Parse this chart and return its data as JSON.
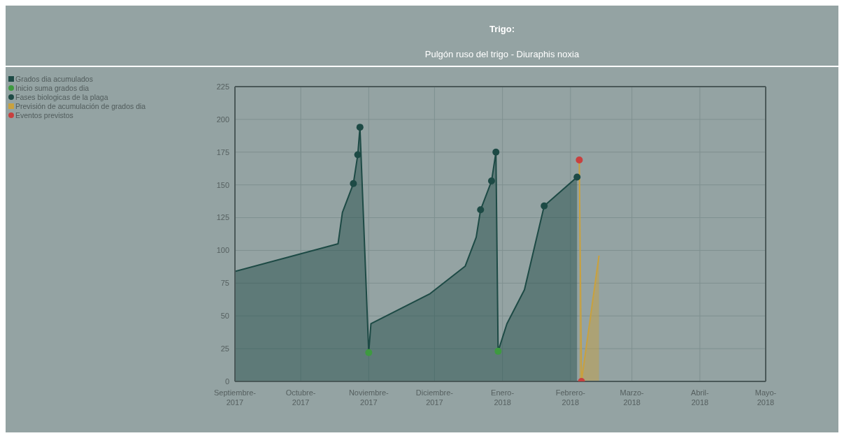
{
  "chart_data": {
    "type": "area",
    "title": "Trigo:",
    "subtitle": "Pulgón ruso del trigo - Diuraphis noxia",
    "xlim": [
      "2017-09-01",
      "2018-05-01"
    ],
    "xticks": [
      {
        "value": "2017-09-01",
        "label": "Septiembre-2017"
      },
      {
        "value": "2017-10-01",
        "label": "Octubre-2017"
      },
      {
        "value": "2017-11-01",
        "label": "Noviembre-2017"
      },
      {
        "value": "2017-12-01",
        "label": "Diciembre-2017"
      },
      {
        "value": "2018-01-01",
        "label": "Enero-2018"
      },
      {
        "value": "2018-02-01",
        "label": "Febrero-2018"
      },
      {
        "value": "2018-03-01",
        "label": "Marzo-2018"
      },
      {
        "value": "2018-04-01",
        "label": "Abril-2018"
      },
      {
        "value": "2018-05-01",
        "label": "Mayo-2018"
      }
    ],
    "ylim": [
      0,
      225
    ],
    "yticks": [
      0,
      25,
      50,
      75,
      100,
      125,
      150,
      175,
      200,
      225
    ],
    "grid": true,
    "legend": "top left",
    "series": [
      {
        "name": "Grados dia acumulados",
        "type": "area",
        "marker": "none",
        "color": "#1d4a45",
        "x": [
          "2017-09-01",
          "2017-10-18",
          "2017-10-20",
          "2017-10-25",
          "2017-10-27",
          "2017-10-28",
          "2017-11-01",
          "2017-11-02",
          "2017-11-29",
          "2017-12-15",
          "2017-12-20",
          "2017-12-22",
          "2017-12-27",
          "2017-12-29",
          "2017-12-30",
          "2018-01-03",
          "2018-01-11",
          "2018-01-20",
          "2018-02-04"
        ],
        "values": [
          84,
          105,
          129,
          151,
          173,
          194,
          22,
          44,
          67,
          88,
          110,
          131,
          153,
          175,
          23,
          44,
          70,
          134,
          156
        ]
      },
      {
        "name": "Inicio suma grados dia",
        "type": "scatter",
        "marker": "circle",
        "color": "#3e9a40",
        "x": [
          "2017-11-01",
          "2017-12-30"
        ],
        "values": [
          22,
          23
        ]
      },
      {
        "name": "Fases biologicas de la plaga",
        "type": "scatter",
        "marker": "circle",
        "color": "#1d4a45",
        "x": [
          "2017-10-25",
          "2017-10-27",
          "2017-10-28",
          "2017-12-22",
          "2017-12-27",
          "2017-12-29",
          "2018-01-20",
          "2018-02-04"
        ],
        "values": [
          151,
          173,
          194,
          131,
          153,
          175,
          134,
          156
        ]
      },
      {
        "name": "Previsión de acumulación de grados dia",
        "type": "area",
        "marker": "none",
        "color": "#c9a13e",
        "x": [
          "2018-02-05",
          "2018-02-06",
          "2018-02-14"
        ],
        "values": [
          169,
          0,
          96
        ]
      },
      {
        "name": "Eventos previstos",
        "type": "scatter",
        "marker": "circle",
        "color": "#c8403f",
        "x": [
          "2018-02-05",
          "2018-02-06"
        ],
        "values": [
          169,
          0
        ]
      }
    ]
  }
}
